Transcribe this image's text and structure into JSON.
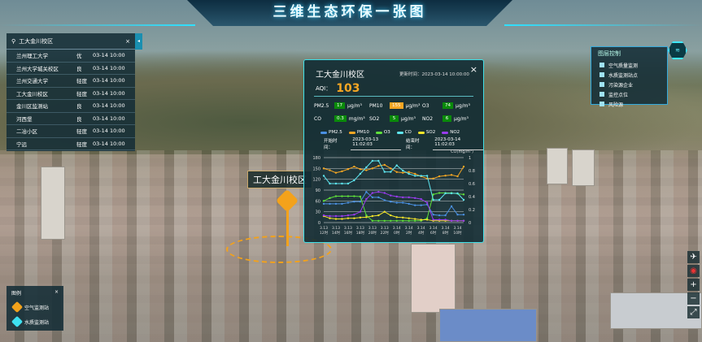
{
  "header": {
    "title": "三维生态环保一张图"
  },
  "search": {
    "placeholder": "工大金川校区",
    "close": "×",
    "tab": "◂",
    "rows": [
      {
        "name": "兰州理工大学",
        "level": "优",
        "time": "03-14 10:00"
      },
      {
        "name": "兰州大学城关校区",
        "level": "良",
        "time": "03-14 10:00"
      },
      {
        "name": "兰州交通大学",
        "level": "轻度",
        "time": "03-14 10:00"
      },
      {
        "name": "工大金川校区",
        "level": "轻度",
        "time": "03-14 10:00"
      },
      {
        "name": "金川区监测站",
        "level": "良",
        "time": "03-14 10:00"
      },
      {
        "name": "河西堡",
        "level": "良",
        "time": "03-14 10:00"
      },
      {
        "name": "二冶小区",
        "level": "轻度",
        "time": "03-14 10:00"
      },
      {
        "name": "宁远",
        "level": "轻度",
        "time": "03-14 10:00"
      }
    ]
  },
  "popup": {
    "title": "工大金川校区",
    "update": "更新时间：2023-03-14 10:00:00",
    "close": "×",
    "aqi_label": "AQI：",
    "aqi": "103",
    "pollutants": [
      {
        "name": "PM2.5",
        "value": "17",
        "unit": "μg/m³",
        "color": "#0a8a0a"
      },
      {
        "name": "PM10",
        "value": "155",
        "unit": "μg/m³",
        "color": "#f5a623"
      },
      {
        "name": "O3",
        "value": "74",
        "unit": "μg/m³",
        "color": "#0a8a0a"
      },
      {
        "name": "CO",
        "value": "0.3",
        "unit": "mg/m³",
        "color": "#0a8a0a"
      },
      {
        "name": "SO2",
        "value": "5",
        "unit": "μg/m³",
        "color": "#0a8a0a"
      },
      {
        "name": "NO2",
        "value": "6",
        "unit": "μg/m³",
        "color": "#0a8a0a"
      }
    ],
    "start_label": "开始时间：",
    "start": "2023-03-13 11:02:03",
    "end_label": "结束时间：",
    "end": "2023-03-14 11:02:03"
  },
  "chart_data": {
    "type": "line",
    "ylim": [
      0,
      180
    ],
    "yticks": [
      0,
      30,
      60,
      90,
      120,
      150,
      180
    ],
    "y2lim": [
      0,
      1
    ],
    "y2ticks": [
      0,
      0.2,
      0.4,
      0.6,
      0.8,
      1
    ],
    "y2label": "CO(mg/m³)",
    "legend": "top",
    "categories": [
      "3.13 12时",
      "",
      "3.13 14时",
      "",
      "3.13 16时",
      "",
      "3.13 18时",
      "",
      "3.13 20时",
      "",
      "3.13 22时",
      "",
      "3.14 0时",
      "",
      "3.14 2时",
      "",
      "3.14 4时",
      "",
      "3.14 6时",
      "",
      "3.14 8时",
      "",
      "3.14 10时",
      ""
    ],
    "xticklabels": [
      "3.13 12时",
      "3.13 14时",
      "3.13 16时",
      "3.13 18时",
      "3.13 20时",
      "3.13 22时",
      "3.14 0时",
      "3.14 2时",
      "3.14 4时",
      "3.14 6时",
      "3.14 8时",
      "3.14 10时"
    ],
    "series": [
      {
        "name": "PM2.5",
        "color": "#4a90e2",
        "axis": "left",
        "values": [
          52,
          52,
          52,
          52,
          55,
          58,
          58,
          85,
          70,
          70,
          62,
          58,
          55,
          55,
          52,
          48,
          48,
          50,
          22,
          20,
          20,
          45,
          22,
          22
        ]
      },
      {
        "name": "PM10",
        "color": "#f5a623",
        "axis": "left",
        "values": [
          150,
          145,
          138,
          142,
          148,
          155,
          148,
          145,
          150,
          157,
          160,
          150,
          140,
          138,
          140,
          135,
          128,
          122,
          122,
          128,
          130,
          132,
          128,
          155
        ]
      },
      {
        "name": "O3",
        "color": "#5fe03a",
        "axis": "left",
        "values": [
          60,
          68,
          73,
          73,
          73,
          73,
          72,
          20,
          5,
          5,
          5,
          5,
          5,
          5,
          5,
          5,
          5,
          12,
          78,
          82,
          82,
          82,
          80,
          78
        ]
      },
      {
        "name": "CO",
        "color": "#5ee6f0",
        "axis": "right",
        "values": [
          0.72,
          0.6,
          0.6,
          0.6,
          0.6,
          0.65,
          0.75,
          0.85,
          0.95,
          0.95,
          0.78,
          0.78,
          0.88,
          0.8,
          0.75,
          0.72,
          0.72,
          0.72,
          0.35,
          0.35,
          0.45,
          0.45,
          0.45,
          0.35
        ]
      },
      {
        "name": "SO2",
        "color": "#f5e52a",
        "axis": "left",
        "values": [
          18,
          12,
          10,
          10,
          12,
          12,
          14,
          15,
          18,
          20,
          30,
          20,
          15,
          14,
          12,
          10,
          8,
          8,
          5,
          5,
          5,
          5,
          5,
          5
        ]
      },
      {
        "name": "NO2",
        "color": "#9a3cf0",
        "axis": "left",
        "values": [
          20,
          18,
          18,
          18,
          20,
          22,
          30,
          65,
          82,
          85,
          82,
          75,
          72,
          70,
          70,
          68,
          65,
          55,
          8,
          8,
          8,
          5,
          5,
          5
        ]
      }
    ]
  },
  "map": {
    "label": "工大金川校区"
  },
  "layers": {
    "title": "图层控制",
    "items": [
      "空气质量监测",
      "水质监测站点",
      "污染源企业",
      "监控点位",
      "风险源"
    ]
  },
  "legend": {
    "title": "图例",
    "close": "×",
    "items": [
      "空气监测站",
      "水质监测站"
    ]
  },
  "tools": [
    "✈",
    "◉",
    "+",
    "−",
    "⤢"
  ]
}
